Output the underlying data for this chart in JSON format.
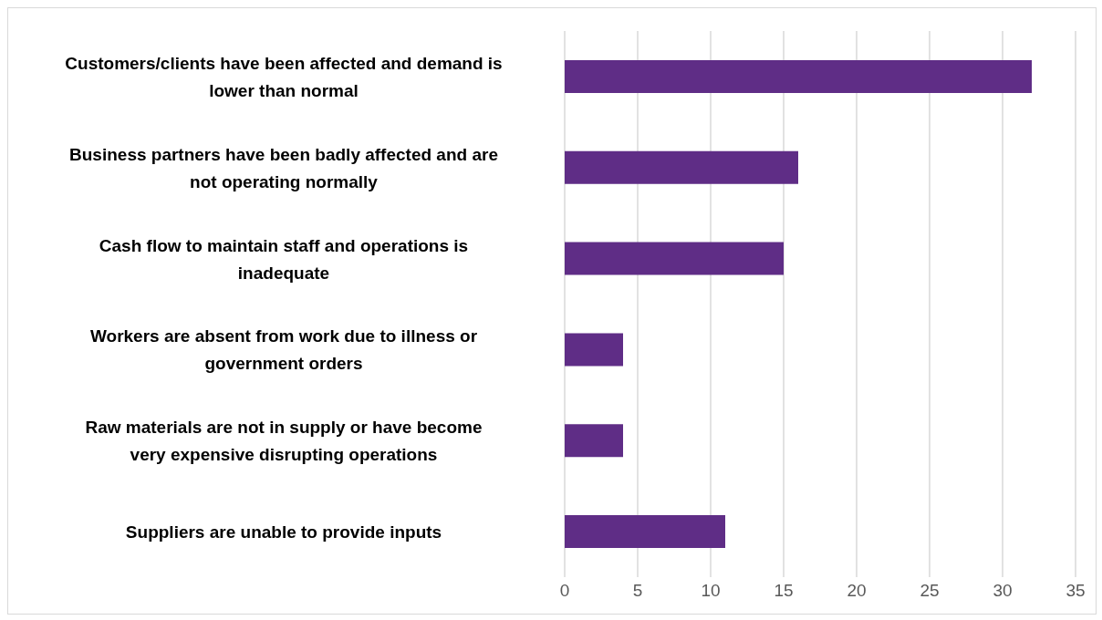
{
  "chart_data": {
    "type": "bar",
    "orientation": "horizontal",
    "categories": [
      "Customers/clients have been affected and demand is lower than normal",
      "Business partners have been badly affected and are not operating normally",
      "Cash flow to maintain staff and operations is inadequate",
      "Workers are absent from work due to illness or government orders",
      "Raw materials are not in supply or have become very expensive disrupting operations",
      "Suppliers are unable to provide inputs"
    ],
    "values": [
      32,
      16,
      15,
      4,
      4,
      11
    ],
    "color": "#5f2d86",
    "xlim": [
      0,
      35
    ],
    "xticks": [
      0,
      5,
      10,
      15,
      20,
      25,
      30,
      35
    ],
    "grid": "x"
  }
}
